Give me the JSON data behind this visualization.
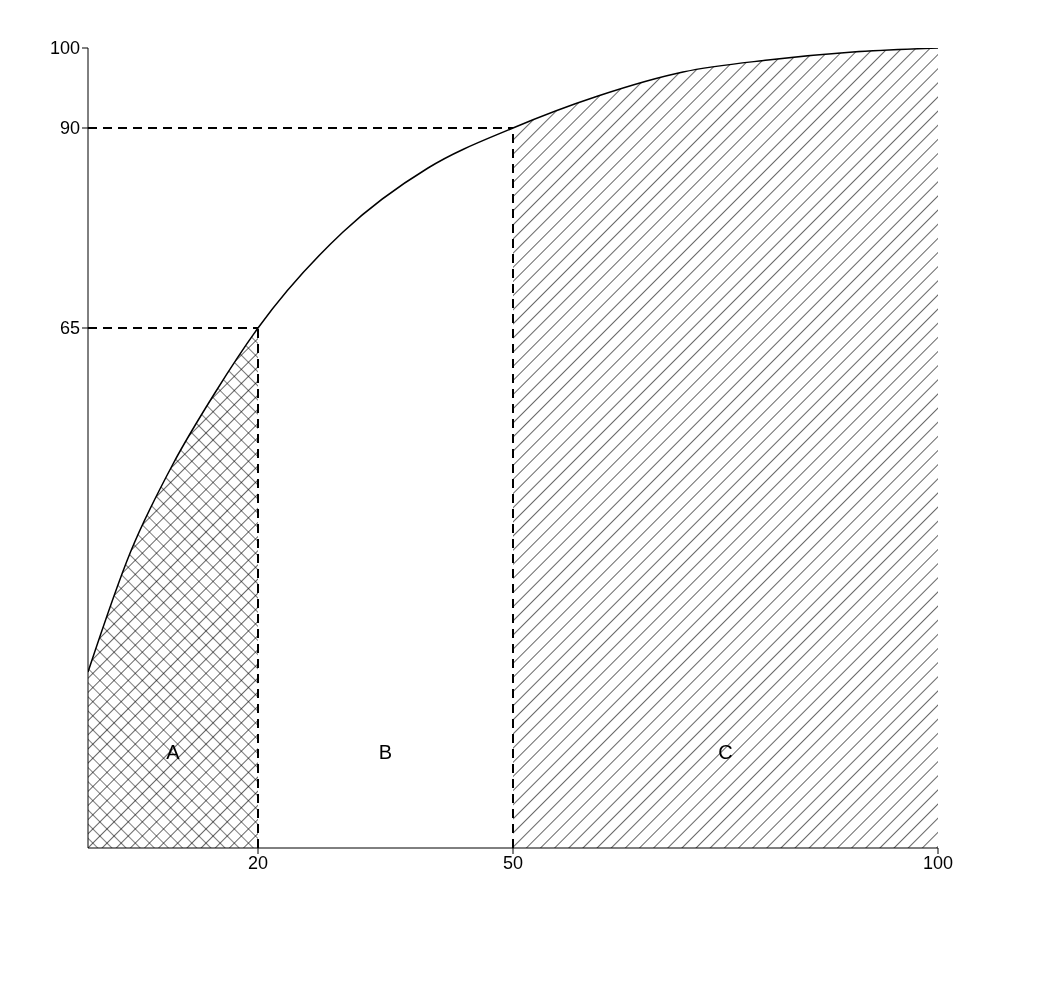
{
  "chart_data": {
    "type": "line",
    "x": [
      0,
      5,
      10,
      15,
      20,
      30,
      40,
      50,
      60,
      70,
      80,
      90,
      100
    ],
    "series": [
      {
        "color": "#000000",
        "values": [
          22,
          37,
          48,
          57,
          65,
          77,
          85,
          90,
          94,
          97,
          98.5,
          99.5,
          100
        ]
      },
      {
        "type": "area",
        "color": "#000000",
        "x": [
          0,
          5,
          10,
          15,
          20
        ],
        "values": [
          22,
          37,
          48,
          57,
          65
        ]
      },
      {
        "type": "area",
        "color": "#000000",
        "x": [
          50,
          60,
          70,
          80,
          90,
          100
        ],
        "values": [
          90,
          94,
          97,
          98.5,
          99.5,
          100
        ]
      }
    ],
    "xlim": [
      0,
      100
    ],
    "xticks": [
      20,
      50,
      100
    ],
    "ylim": [
      0,
      100
    ],
    "yticks": [
      65,
      90,
      100
    ],
    "ref_lines": [
      {
        "axis": "y",
        "value": 65,
        "line_style": "dashed"
      },
      {
        "axis": "y",
        "value": 90,
        "line_style": "dashed"
      },
      {
        "axis": "x",
        "value": 20,
        "line_style": "dashed"
      },
      {
        "axis": "x",
        "value": 50,
        "line_style": "dashed"
      }
    ],
    "annotations": [
      "A",
      "B",
      "C"
    ],
    "grid": false
  }
}
